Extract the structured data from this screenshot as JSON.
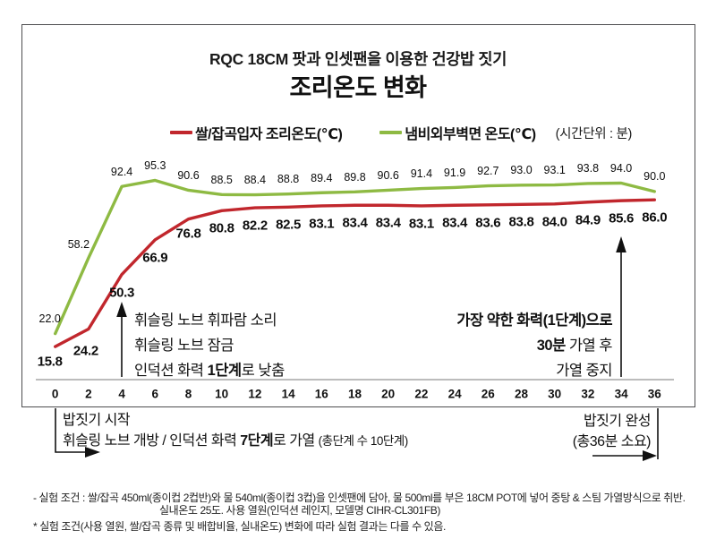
{
  "title": "RQC 18CM 팟과 인셋팬을 이용한 건강밥 짓기",
  "subtitle": "조리온도 변화",
  "legend": {
    "series1_label": "쌀/잡곡입자 조리온도(℃)",
    "series2_label": "냄비외부벽면 온도(℃)",
    "time_unit_note": "(시간단위 : 분)"
  },
  "colors": {
    "rice_line": "#c1272d",
    "pot_line": "#8eba43",
    "axis": "#a6a6a6",
    "annotation": "#111111",
    "frame_border": "#4d4d4f"
  },
  "chart_data": {
    "type": "line",
    "x": [
      0,
      2,
      4,
      6,
      8,
      10,
      12,
      14,
      16,
      18,
      20,
      22,
      24,
      26,
      28,
      30,
      32,
      34,
      36
    ],
    "x_unit": "분",
    "ylim": [
      0,
      100
    ],
    "grid": false,
    "legend_position": "top",
    "series": [
      {
        "name": "쌀/잡곡입자 조리온도(℃)",
        "color_key": "rice_line",
        "values": [
          15.8,
          24.2,
          50.3,
          66.9,
          76.8,
          80.8,
          82.2,
          82.5,
          83.1,
          83.4,
          83.4,
          83.1,
          83.4,
          83.6,
          83.8,
          84.0,
          84.9,
          85.6,
          86.0
        ]
      },
      {
        "name": "냄비외부벽면 온도(℃)",
        "color_key": "pot_line",
        "values": [
          22.0,
          58.2,
          92.4,
          95.3,
          90.6,
          88.5,
          88.4,
          88.8,
          89.4,
          89.8,
          90.6,
          91.4,
          91.9,
          92.7,
          93.0,
          93.1,
          93.8,
          94.0,
          90.0
        ]
      }
    ]
  },
  "annotations": {
    "whistle": {
      "lines": [
        [
          {
            "t": "휘슬링 노브 휘파람 소리"
          }
        ],
        [
          {
            "t": "휘슬링 노브 잠금"
          }
        ],
        [
          {
            "t": "인덕션 화력 "
          },
          {
            "t": "1단계",
            "b": true
          },
          {
            "t": "로 낮춤"
          }
        ]
      ]
    },
    "weak_heat": {
      "lines": [
        [
          {
            "t": "가장 약한 화력(1단계)으로",
            "b": true
          }
        ],
        [
          {
            "t": "30분",
            "b": true
          },
          {
            "t": " 가열 후"
          }
        ],
        [
          {
            "t": "가열 중지"
          }
        ]
      ]
    },
    "start": {
      "lines": [
        [
          {
            "t": "밥짓기 시작"
          }
        ],
        [
          {
            "t": "휘슬링 노브 개방 / 인덕션 화력 "
          },
          {
            "t": "7단계",
            "b": true
          },
          {
            "t": "로 가열 "
          },
          {
            "t": "(총단계 수 10단계)",
            "small": true
          }
        ]
      ]
    },
    "finish": {
      "lines": [
        [
          {
            "t": "밥짓기 완성"
          }
        ],
        [
          {
            "t": "(총36분 소요)"
          }
        ]
      ]
    }
  },
  "footnotes": [
    "- 실험 조건 : 쌀/잡곡 450ml(종이컵 2컵반)와 물 540ml(종이컵 3컵)을 인셋팬에 담아, 물 500ml를 부은 18CM POT에 넣어 중탕 & 스팀 가열방식으로 취반.",
    "실내온도 25도. 사용 열원(인덕션 레인지, 모델명 CIHR-CL301FB)",
    "* 실험 조건(사용 열원, 쌀/잡곡 종류 및 배합비율, 실내온도) 변화에 따라 실험 결과는 다를 수 있음."
  ]
}
